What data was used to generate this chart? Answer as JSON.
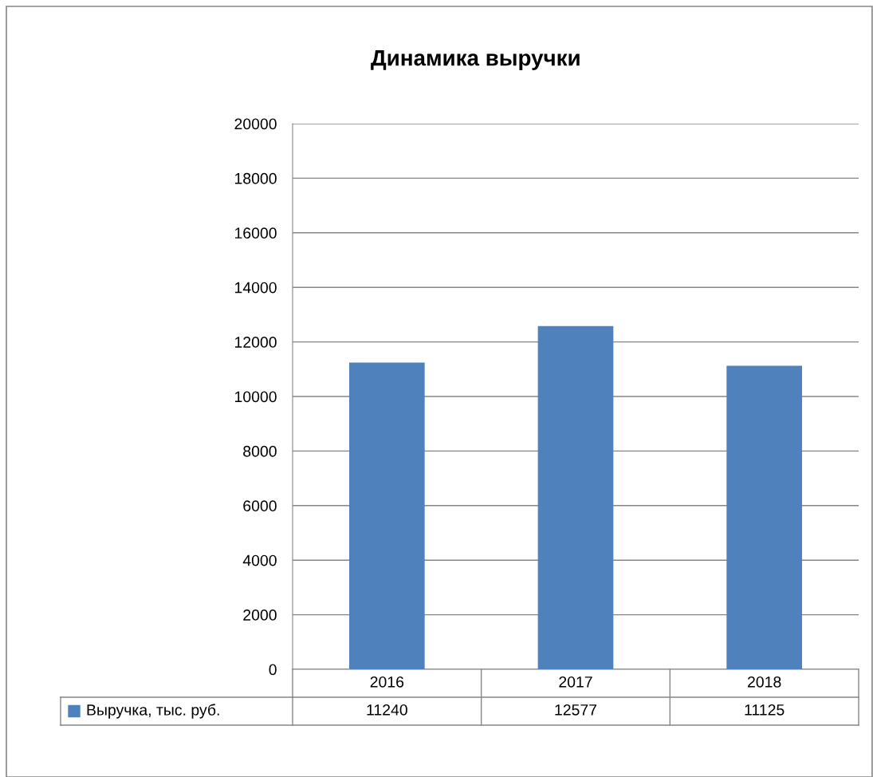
{
  "chart_data": {
    "type": "bar",
    "title": "Динамика выручки",
    "categories": [
      "2016",
      "2017",
      "2018"
    ],
    "series": [
      {
        "name": "Выручка, тыс. руб.",
        "color": "#4f81bd",
        "values": [
          11240,
          12577,
          11125
        ]
      }
    ],
    "ylim": [
      0,
      20000
    ],
    "yticks": [
      0,
      2000,
      4000,
      6000,
      8000,
      10000,
      12000,
      14000,
      16000,
      18000,
      20000
    ],
    "grid": "y",
    "legend": "bottom",
    "data_labels": true
  }
}
